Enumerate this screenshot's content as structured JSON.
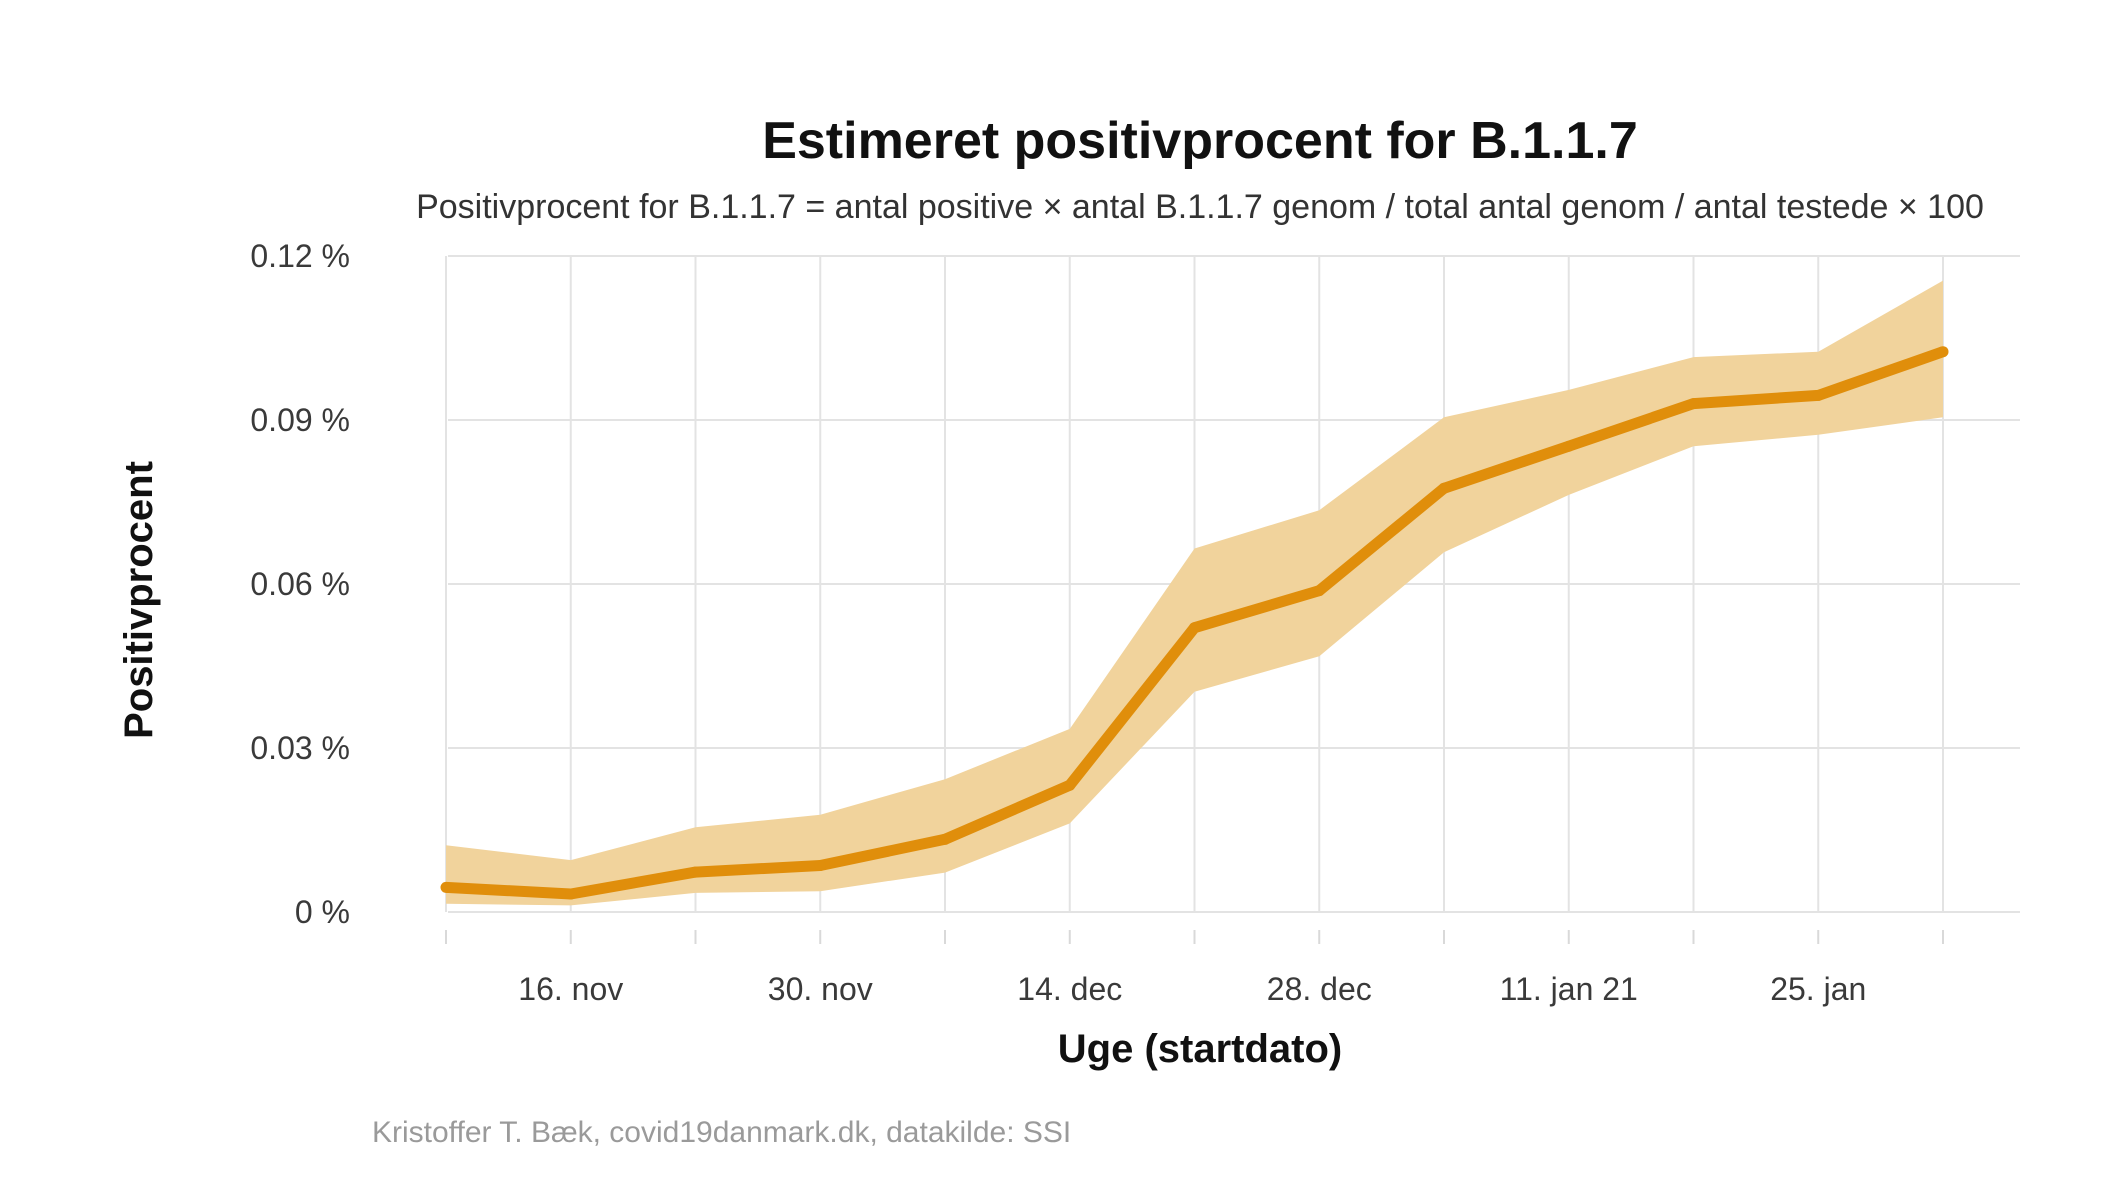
{
  "colors": {
    "line": "#E08E0B",
    "ribbon": "#F1D39C",
    "grid": "#E3E3E3",
    "background": "#FFFFFF"
  },
  "chart_data": {
    "type": "line",
    "title": "Estimeret positivprocent for B.1.1.7",
    "subtitle": "Positivprocent for B.1.1.7 = antal positive × antal B.1.1.7 genom / total antal genom / antal testede × 100",
    "xlabel": "Uge (startdato)",
    "ylabel": "Positivprocent",
    "caption": "Kristoffer T. Bæk, covid19danmark.dk, datakilde: SSI",
    "x_ticks": [
      {
        "date": "2020-11-16",
        "label": "16. nov"
      },
      {
        "date": "2020-11-30",
        "label": "30. nov"
      },
      {
        "date": "2020-12-14",
        "label": "14. dec"
      },
      {
        "date": "2020-12-28",
        "label": "28. dec"
      },
      {
        "date": "2021-01-11",
        "label": "11. jan 21"
      },
      {
        "date": "2021-01-25",
        "label": "25. jan"
      }
    ],
    "y_ticks": [
      {
        "value": 0,
        "label": "0 %"
      },
      {
        "value": 0.03,
        "label": "0.03 %"
      },
      {
        "value": 0.06,
        "label": "0.06 %"
      },
      {
        "value": 0.09,
        "label": "0.09 %"
      },
      {
        "value": 0.12,
        "label": "0.12 %"
      }
    ],
    "ylim": [
      0,
      0.12
    ],
    "xlim": [
      "2020-11-09",
      "2021-02-01"
    ],
    "grid": true,
    "x": [
      "2020-11-09",
      "2020-11-16",
      "2020-11-23",
      "2020-11-30",
      "2020-12-07",
      "2020-12-14",
      "2020-12-21",
      "2020-12-28",
      "2021-01-04",
      "2021-01-11",
      "2021-01-18",
      "2021-01-25",
      "2021-02-01"
    ],
    "series": [
      {
        "values": [
          0.0045,
          0.0033,
          0.0073,
          0.0085,
          0.0133,
          0.0232,
          0.052,
          0.0588,
          0.0775,
          0.0852,
          0.093,
          0.0945,
          0.1025
        ],
        "lower": [
          0.0015,
          0.0012,
          0.0035,
          0.0038,
          0.0072,
          0.0162,
          0.0403,
          0.0468,
          0.0658,
          0.0763,
          0.0852,
          0.0873,
          0.0905
        ],
        "upper": [
          0.0122,
          0.0095,
          0.0155,
          0.0178,
          0.0243,
          0.0335,
          0.0665,
          0.0735,
          0.0905,
          0.0955,
          0.1015,
          0.1025,
          0.1155
        ]
      }
    ]
  }
}
